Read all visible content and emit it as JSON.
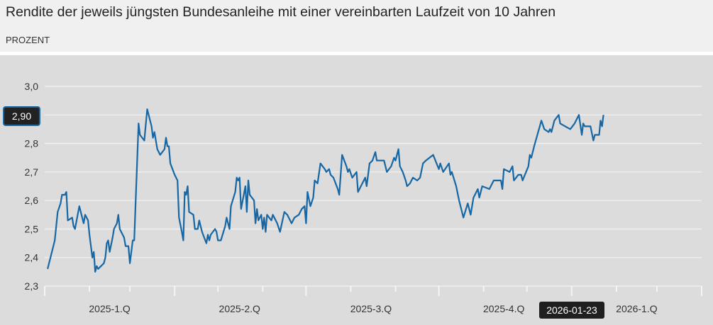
{
  "header": {
    "title": "Rendite der jeweils jüngsten Bundesanleihe mit einer vereinbarten Laufzeit von 10 Jahren",
    "subtitle": "PROZENT"
  },
  "colors": {
    "line": "#1767a5",
    "background": "#dcdcdc",
    "grid": "#f2f2f2",
    "header_bg": "#f0f0f0"
  },
  "crosshair": {
    "y_label": "2,90",
    "x_label": "2026-01-23"
  },
  "chart_data": {
    "type": "line",
    "title": "Rendite der jeweils jüngsten Bundesanleihe mit einer vereinbarten Laufzeit von 10 Jahren",
    "ylabel": "PROZENT",
    "xlim": [
      "2025-01-01",
      "2026-04-01"
    ],
    "ylim": [
      2.3,
      3.0
    ],
    "grid": true,
    "yticks": [
      {
        "value": 3.0,
        "label": "3,0"
      },
      {
        "value": 2.9,
        "label": ""
      },
      {
        "value": 2.8,
        "label": "2,8"
      },
      {
        "value": 2.7,
        "label": "2,7"
      },
      {
        "value": 2.6,
        "label": "2,6"
      },
      {
        "value": 2.5,
        "label": "2,5"
      },
      {
        "value": 2.4,
        "label": "2,4"
      },
      {
        "value": 2.3,
        "label": "2,3"
      }
    ],
    "xticks_major": [
      "2025-01-01",
      "2025-04-01",
      "2025-07-01",
      "2025-10-01",
      "2026-01-01",
      "2026-04-01"
    ],
    "xticks_minor": [
      "2025-02-01",
      "2025-03-01",
      "2025-05-01",
      "2025-06-01",
      "2025-08-01",
      "2025-09-01",
      "2025-11-01",
      "2025-12-01",
      "2026-02-01",
      "2026-03-01"
    ],
    "xlabels": [
      {
        "label": "2025-1.Q",
        "at": "2025-02-15"
      },
      {
        "label": "2025-2.Q",
        "at": "2025-05-16"
      },
      {
        "label": "2025-3.Q",
        "at": "2025-08-15"
      },
      {
        "label": "2025-4.Q",
        "at": "2025-11-15"
      },
      {
        "label": "2026-1.Q",
        "at": "2026-02-15"
      }
    ],
    "points": [
      [
        "2025-01-03",
        2.36
      ],
      [
        "2025-01-07",
        2.44
      ],
      [
        "2025-01-08",
        2.46
      ],
      [
        "2025-01-10",
        2.56
      ],
      [
        "2025-01-12",
        2.59
      ],
      [
        "2025-01-13",
        2.62
      ],
      [
        "2025-01-15",
        2.62
      ],
      [
        "2025-01-16",
        2.63
      ],
      [
        "2025-01-17",
        2.53
      ],
      [
        "2025-01-20",
        2.54
      ],
      [
        "2025-01-21",
        2.51
      ],
      [
        "2025-01-22",
        2.5
      ],
      [
        "2025-01-25",
        2.58
      ],
      [
        "2025-01-28",
        2.52
      ],
      [
        "2025-01-29",
        2.55
      ],
      [
        "2025-01-31",
        2.53
      ],
      [
        "2025-02-01",
        2.48
      ],
      [
        "2025-02-03",
        2.4
      ],
      [
        "2025-02-04",
        2.42
      ],
      [
        "2025-02-05",
        2.35
      ],
      [
        "2025-02-06",
        2.37
      ],
      [
        "2025-02-07",
        2.36
      ],
      [
        "2025-02-09",
        2.37
      ],
      [
        "2025-02-11",
        2.38
      ],
      [
        "2025-02-12",
        2.4
      ],
      [
        "2025-02-13",
        2.45
      ],
      [
        "2025-02-14",
        2.46
      ],
      [
        "2025-02-15",
        2.42
      ],
      [
        "2025-02-17",
        2.47
      ],
      [
        "2025-02-18",
        2.5
      ],
      [
        "2025-02-20",
        2.52
      ],
      [
        "2025-02-21",
        2.55
      ],
      [
        "2025-02-22",
        2.5
      ],
      [
        "2025-02-24",
        2.48
      ],
      [
        "2025-02-25",
        2.47
      ],
      [
        "2025-02-26",
        2.44
      ],
      [
        "2025-02-28",
        2.44
      ],
      [
        "2025-03-01",
        2.38
      ],
      [
        "2025-03-03",
        2.46
      ],
      [
        "2025-03-04",
        2.46
      ],
      [
        "2025-03-07",
        2.87
      ],
      [
        "2025-03-08",
        2.83
      ],
      [
        "2025-03-11",
        2.81
      ],
      [
        "2025-03-13",
        2.92
      ],
      [
        "2025-03-16",
        2.86
      ],
      [
        "2025-03-17",
        2.82
      ],
      [
        "2025-03-18",
        2.84
      ],
      [
        "2025-03-20",
        2.78
      ],
      [
        "2025-03-22",
        2.76
      ],
      [
        "2025-03-25",
        2.78
      ],
      [
        "2025-03-26",
        2.82
      ],
      [
        "2025-03-27",
        2.79
      ],
      [
        "2025-03-28",
        2.79
      ],
      [
        "2025-03-29",
        2.73
      ],
      [
        "2025-04-01",
        2.69
      ],
      [
        "2025-04-02",
        2.68
      ],
      [
        "2025-04-03",
        2.67
      ],
      [
        "2025-04-04",
        2.54
      ],
      [
        "2025-04-06",
        2.49
      ],
      [
        "2025-04-07",
        2.46
      ],
      [
        "2025-04-08",
        2.63
      ],
      [
        "2025-04-09",
        2.62
      ],
      [
        "2025-04-10",
        2.65
      ],
      [
        "2025-04-11",
        2.56
      ],
      [
        "2025-04-14",
        2.55
      ],
      [
        "2025-04-15",
        2.5
      ],
      [
        "2025-04-17",
        2.5
      ],
      [
        "2025-04-18",
        2.53
      ],
      [
        "2025-04-20",
        2.49
      ],
      [
        "2025-04-23",
        2.45
      ],
      [
        "2025-04-24",
        2.48
      ],
      [
        "2025-04-25",
        2.46
      ],
      [
        "2025-04-26",
        2.48
      ],
      [
        "2025-04-29",
        2.5
      ],
      [
        "2025-04-30",
        2.49
      ],
      [
        "2025-05-01",
        2.46
      ],
      [
        "2025-05-03",
        2.46
      ],
      [
        "2025-05-06",
        2.51
      ],
      [
        "2025-05-07",
        2.54
      ],
      [
        "2025-05-09",
        2.5
      ],
      [
        "2025-05-10",
        2.58
      ],
      [
        "2025-05-13",
        2.63
      ],
      [
        "2025-05-14",
        2.68
      ],
      [
        "2025-05-15",
        2.67
      ],
      [
        "2025-05-16",
        2.68
      ],
      [
        "2025-05-17",
        2.57
      ],
      [
        "2025-05-20",
        2.65
      ],
      [
        "2025-05-21",
        2.56
      ],
      [
        "2025-05-22",
        2.67
      ],
      [
        "2025-05-23",
        2.62
      ],
      [
        "2025-05-26",
        2.6
      ],
      [
        "2025-05-27",
        2.52
      ],
      [
        "2025-05-28",
        2.57
      ],
      [
        "2025-05-29",
        2.53
      ],
      [
        "2025-05-31",
        2.55
      ],
      [
        "2025-06-01",
        2.5
      ],
      [
        "2025-06-02",
        2.54
      ],
      [
        "2025-06-03",
        2.49
      ],
      [
        "2025-06-04",
        2.55
      ],
      [
        "2025-06-07",
        2.53
      ],
      [
        "2025-06-08",
        2.55
      ],
      [
        "2025-06-11",
        2.52
      ],
      [
        "2025-06-13",
        2.49
      ],
      [
        "2025-06-16",
        2.56
      ],
      [
        "2025-06-18",
        2.55
      ],
      [
        "2025-06-21",
        2.52
      ],
      [
        "2025-06-23",
        2.54
      ],
      [
        "2025-06-26",
        2.55
      ],
      [
        "2025-06-28",
        2.57
      ],
      [
        "2025-06-30",
        2.58
      ],
      [
        "2025-07-01",
        2.52
      ],
      [
        "2025-07-02",
        2.63
      ],
      [
        "2025-07-04",
        2.58
      ],
      [
        "2025-07-06",
        2.61
      ],
      [
        "2025-07-07",
        2.67
      ],
      [
        "2025-07-09",
        2.66
      ],
      [
        "2025-07-11",
        2.73
      ],
      [
        "2025-07-14",
        2.71
      ],
      [
        "2025-07-15",
        2.7
      ],
      [
        "2025-07-17",
        2.71
      ],
      [
        "2025-07-18",
        2.69
      ],
      [
        "2025-07-20",
        2.68
      ],
      [
        "2025-07-23",
        2.64
      ],
      [
        "2025-07-24",
        2.62
      ],
      [
        "2025-07-26",
        2.76
      ],
      [
        "2025-07-29",
        2.72
      ],
      [
        "2025-07-30",
        2.7
      ],
      [
        "2025-07-31",
        2.71
      ],
      [
        "2025-08-02",
        2.68
      ],
      [
        "2025-08-05",
        2.7
      ],
      [
        "2025-08-06",
        2.63
      ],
      [
        "2025-08-09",
        2.66
      ],
      [
        "2025-08-11",
        2.68
      ],
      [
        "2025-08-12",
        2.65
      ],
      [
        "2025-08-14",
        2.73
      ],
      [
        "2025-08-16",
        2.74
      ],
      [
        "2025-08-18",
        2.77
      ],
      [
        "2025-08-19",
        2.74
      ],
      [
        "2025-08-21",
        2.74
      ],
      [
        "2025-08-24",
        2.74
      ],
      [
        "2025-08-26",
        2.7
      ],
      [
        "2025-08-29",
        2.72
      ],
      [
        "2025-08-31",
        2.75
      ],
      [
        "2025-09-01",
        2.74
      ],
      [
        "2025-09-03",
        2.78
      ],
      [
        "2025-09-04",
        2.72
      ],
      [
        "2025-09-06",
        2.7
      ],
      [
        "2025-09-08",
        2.67
      ],
      [
        "2025-09-09",
        2.65
      ],
      [
        "2025-09-11",
        2.66
      ],
      [
        "2025-09-13",
        2.68
      ],
      [
        "2025-09-16",
        2.67
      ],
      [
        "2025-09-18",
        2.68
      ],
      [
        "2025-09-20",
        2.73
      ],
      [
        "2025-09-22",
        2.74
      ],
      [
        "2025-09-27",
        2.76
      ],
      [
        "2025-10-01",
        2.71
      ],
      [
        "2025-10-02",
        2.73
      ],
      [
        "2025-10-04",
        2.7
      ],
      [
        "2025-10-08",
        2.73
      ],
      [
        "2025-10-09",
        2.69
      ],
      [
        "2025-10-10",
        2.7
      ],
      [
        "2025-10-13",
        2.65
      ],
      [
        "2025-10-15",
        2.6
      ],
      [
        "2025-10-18",
        2.54
      ],
      [
        "2025-10-21",
        2.59
      ],
      [
        "2025-10-23",
        2.55
      ],
      [
        "2025-10-25",
        2.61
      ],
      [
        "2025-10-28",
        2.64
      ],
      [
        "2025-10-29",
        2.61
      ],
      [
        "2025-10-31",
        2.65
      ],
      [
        "2025-11-05",
        2.64
      ],
      [
        "2025-11-08",
        2.67
      ],
      [
        "2025-11-13",
        2.67
      ],
      [
        "2025-11-14",
        2.64
      ],
      [
        "2025-11-15",
        2.71
      ],
      [
        "2025-11-19",
        2.7
      ],
      [
        "2025-11-21",
        2.72
      ],
      [
        "2025-11-22",
        2.67
      ],
      [
        "2025-11-25",
        2.69
      ],
      [
        "2025-11-27",
        2.69
      ],
      [
        "2025-11-28",
        2.67
      ],
      [
        "2025-12-02",
        2.72
      ],
      [
        "2025-12-03",
        2.76
      ],
      [
        "2025-12-04",
        2.75
      ],
      [
        "2025-12-06",
        2.79
      ],
      [
        "2025-12-11",
        2.88
      ],
      [
        "2025-12-13",
        2.85
      ],
      [
        "2025-12-16",
        2.84
      ],
      [
        "2025-12-17",
        2.85
      ],
      [
        "2025-12-18",
        2.84
      ],
      [
        "2025-12-20",
        2.88
      ],
      [
        "2025-12-23",
        2.9
      ],
      [
        "2025-12-24",
        2.87
      ],
      [
        "2025-12-31",
        2.85
      ],
      [
        "2026-01-03",
        2.87
      ],
      [
        "2026-01-06",
        2.9
      ],
      [
        "2026-01-08",
        2.83
      ],
      [
        "2026-01-09",
        2.87
      ],
      [
        "2026-01-10",
        2.86
      ],
      [
        "2026-01-14",
        2.86
      ],
      [
        "2026-01-16",
        2.81
      ],
      [
        "2026-01-17",
        2.83
      ],
      [
        "2026-01-20",
        2.83
      ],
      [
        "2026-01-21",
        2.88
      ],
      [
        "2026-01-22",
        2.86
      ],
      [
        "2026-01-23",
        2.9
      ]
    ]
  }
}
